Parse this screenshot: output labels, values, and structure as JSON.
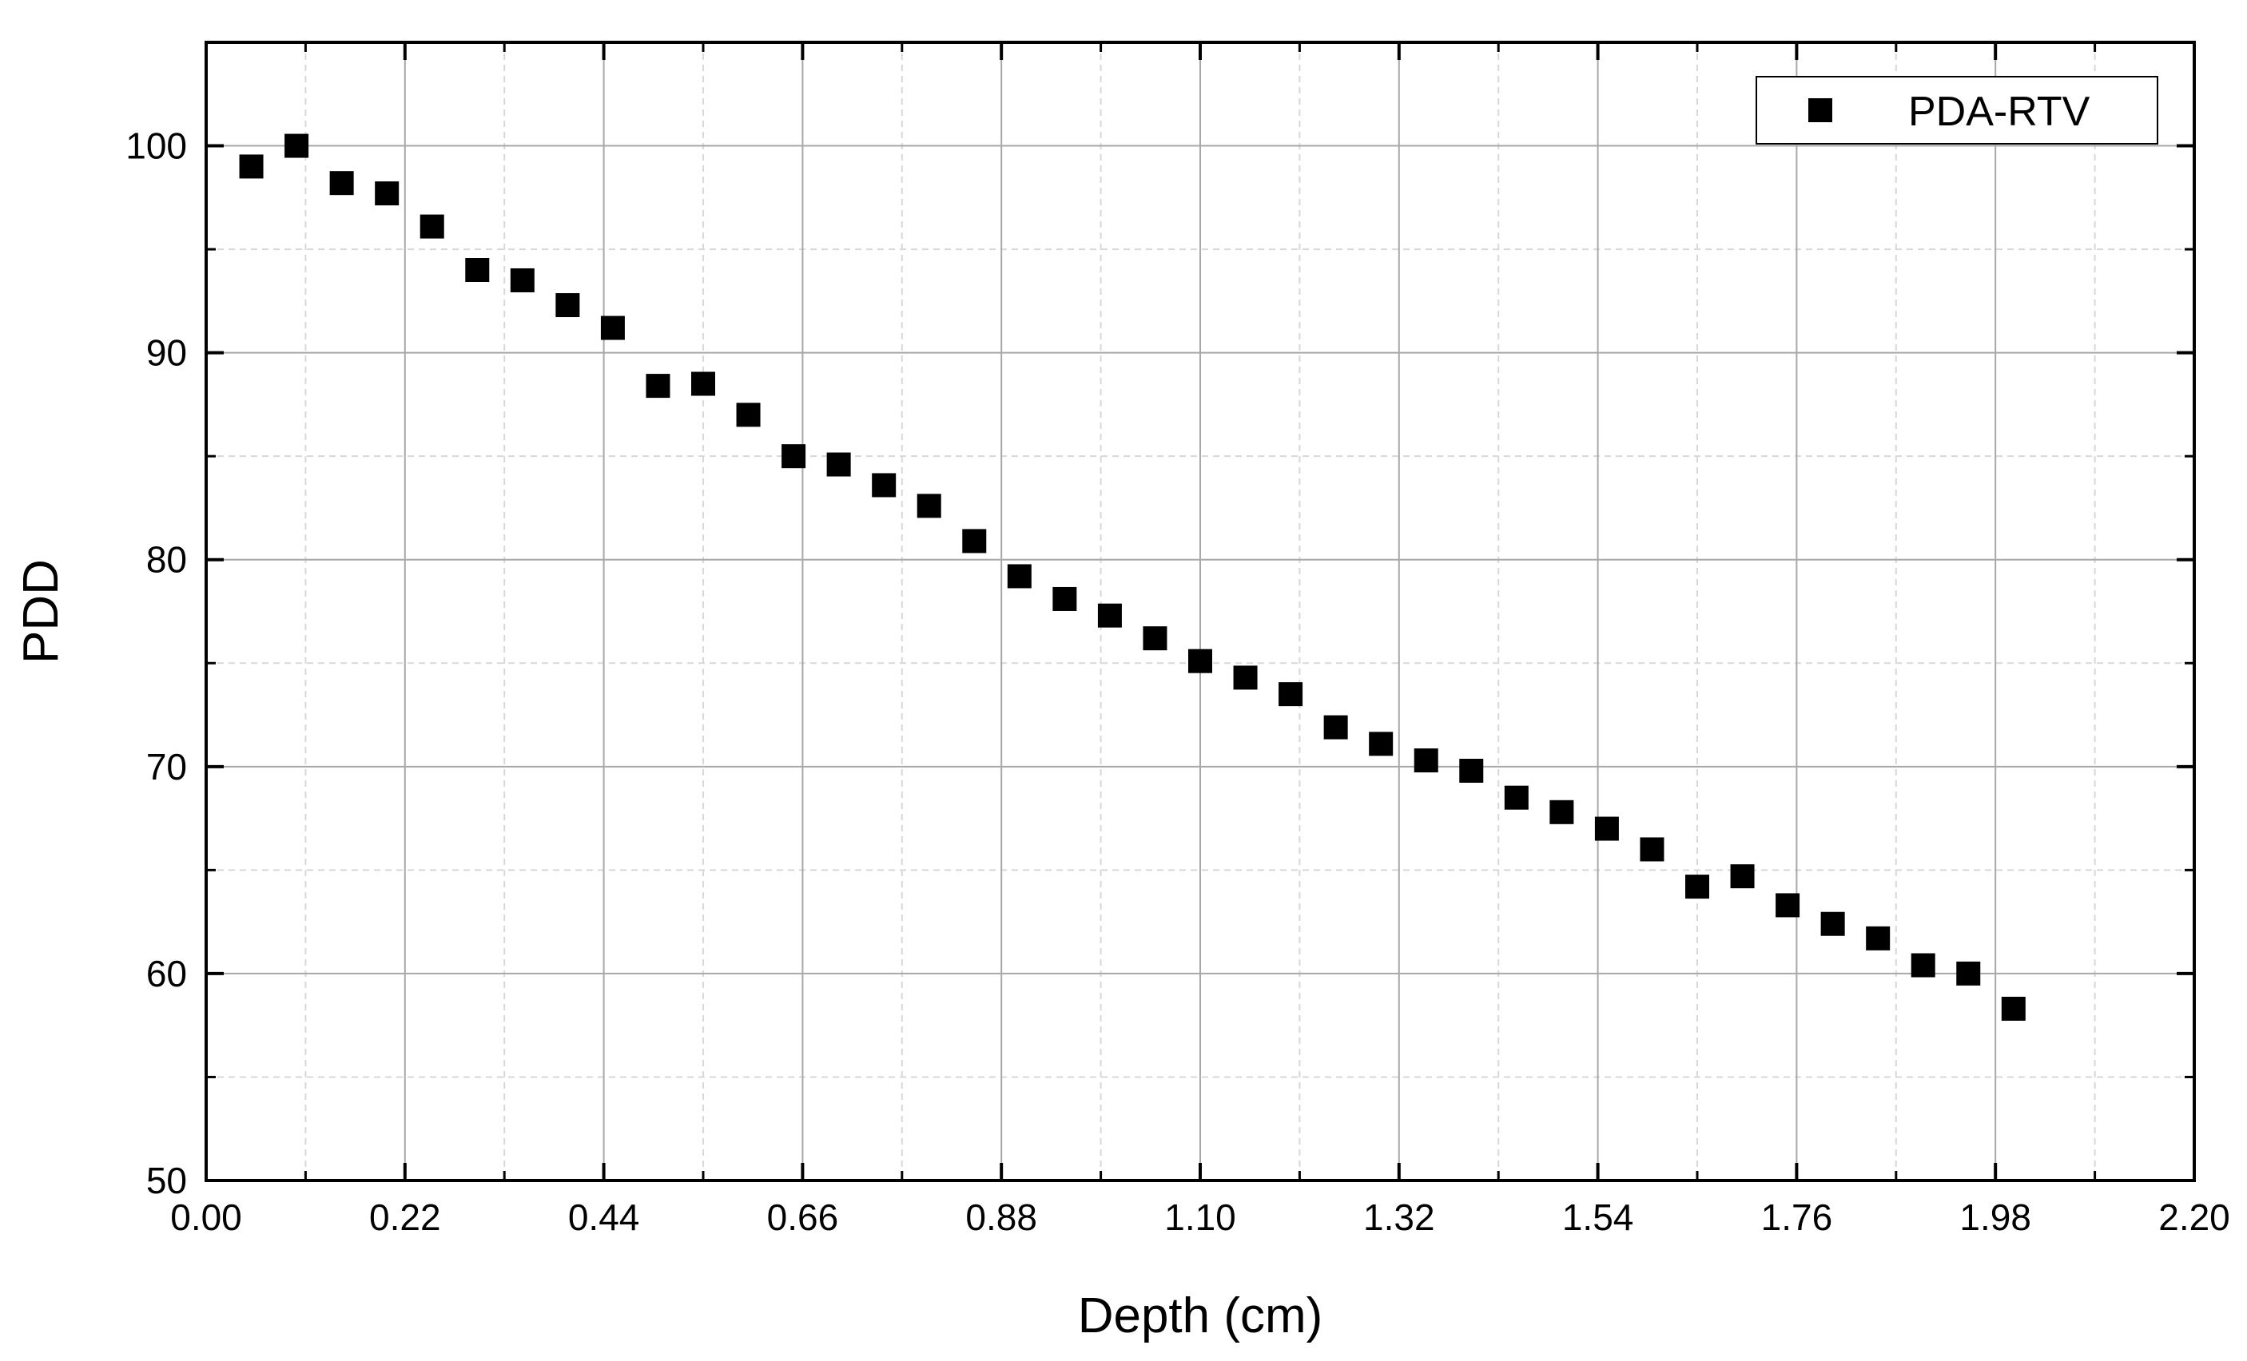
{
  "chart_data": {
    "type": "scatter",
    "xlabel": "Depth (cm)",
    "ylabel": "PDD",
    "xlim": [
      0.0,
      2.2
    ],
    "ylim": [
      50,
      105
    ],
    "x_ticks": [
      "0.00",
      "0.22",
      "0.44",
      "0.66",
      "0.88",
      "1.10",
      "1.32",
      "1.54",
      "1.76",
      "1.98",
      "2.20"
    ],
    "x_tick_values": [
      0.0,
      0.22,
      0.44,
      0.66,
      0.88,
      1.1,
      1.32,
      1.54,
      1.76,
      1.98,
      2.2
    ],
    "y_ticks": [
      "50",
      "60",
      "70",
      "80",
      "90",
      "100"
    ],
    "y_tick_values": [
      50,
      60,
      70,
      80,
      90,
      100
    ],
    "grid": true,
    "legend_position": "top-right",
    "series": [
      {
        "name": "PDA-RTV",
        "marker": "square",
        "color": "#000000",
        "x": [
          0.05,
          0.1,
          0.15,
          0.2,
          0.25,
          0.3,
          0.35,
          0.4,
          0.45,
          0.5,
          0.55,
          0.6,
          0.65,
          0.7,
          0.75,
          0.8,
          0.85,
          0.9,
          0.95,
          1.0,
          1.05,
          1.1,
          1.15,
          1.2,
          1.25,
          1.3,
          1.35,
          1.4,
          1.45,
          1.5,
          1.55,
          1.6,
          1.65,
          1.7,
          1.75,
          1.8,
          1.85,
          1.9,
          1.95,
          2.0
        ],
        "y": [
          99.0,
          100.0,
          98.2,
          97.7,
          96.1,
          94.0,
          93.5,
          92.3,
          91.2,
          88.4,
          88.5,
          87.0,
          85.0,
          84.6,
          83.6,
          82.6,
          80.9,
          79.2,
          78.1,
          77.3,
          76.2,
          75.1,
          74.3,
          73.5,
          71.9,
          71.1,
          70.3,
          69.8,
          68.5,
          67.8,
          67.0,
          66.0,
          64.2,
          64.7,
          63.3,
          62.4,
          61.7,
          60.4,
          60.0,
          58.3
        ]
      }
    ]
  }
}
